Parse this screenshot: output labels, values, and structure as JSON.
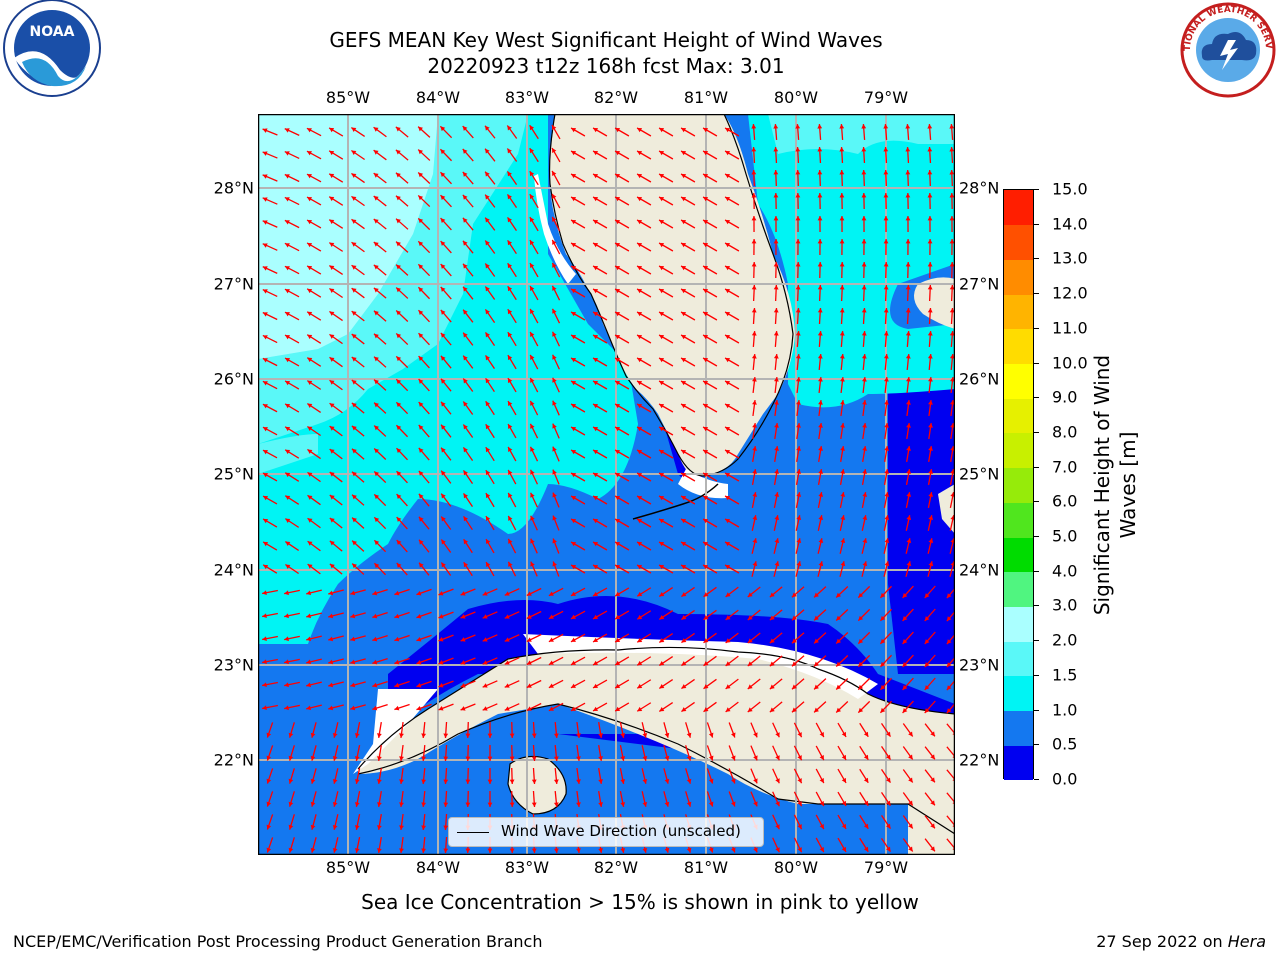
{
  "title_line1": "GEFS MEAN Key West Significant Height of Wind Waves",
  "title_line2": "20220923 t12z 168h fcst   Max: 3.01",
  "lon_ticks": [
    "85°W",
    "84°W",
    "83°W",
    "82°W",
    "81°W",
    "80°W",
    "79°W"
  ],
  "lat_ticks": [
    "28°N",
    "27°N",
    "26°N",
    "25°N",
    "24°N",
    "23°N",
    "22°N"
  ],
  "legend_label": "Wind Wave Direction (unscaled)",
  "colorbar": {
    "label": "Significant Height of Wind Waves [m]",
    "ticks": [
      "0.0",
      "0.5",
      "1.0",
      "1.5",
      "2.0",
      "3.0",
      "4.0",
      "5.0",
      "6.0",
      "7.0",
      "8.0",
      "9.0",
      "10.0",
      "11.0",
      "12.0",
      "13.0",
      "14.0",
      "15.0"
    ],
    "colors": [
      "#0000f0",
      "#1478f0",
      "#00f4f4",
      "#5af8f8",
      "#aaffff",
      "#50f580",
      "#00dc00",
      "#50e61e",
      "#96eb0a",
      "#c8f000",
      "#e6f000",
      "#ffff00",
      "#ffdc00",
      "#ffb400",
      "#ff8c00",
      "#ff5000",
      "#ff1e00"
    ]
  },
  "map_colors": {
    "land": "#efecdc",
    "level_0_0_5": "#0000f0",
    "level_0_5_1_0": "#1478f0",
    "level_1_0_1_5": "#00f4f4",
    "level_1_5_2_0": "#5af8f8",
    "level_2_0_3_0": "#aaffff",
    "arrow": "#ff0000",
    "grid": "#b4b4b4"
  },
  "caption": "Sea Ice Concentration > 15% is shown in pink to yellow",
  "footer_left": "NCEP/EMC/Verification Post Processing Product Generation Branch",
  "footer_right_prefix": "27 Sep 2022 on ",
  "footer_right_host": "Hera",
  "logos": {
    "noaa_text": "NOAA",
    "nws_text": "NATIONAL WEATHER SERVICE"
  }
}
